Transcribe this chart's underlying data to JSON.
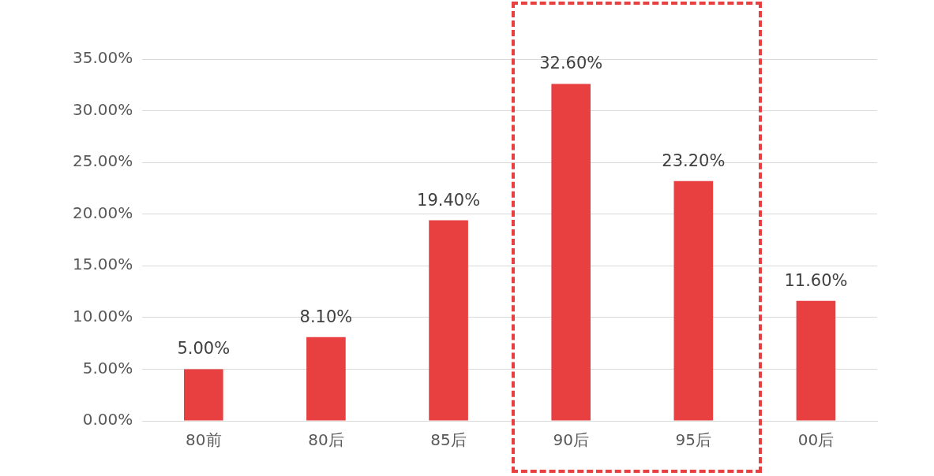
{
  "chart_data": {
    "type": "bar",
    "categories": [
      "80前",
      "80后",
      "85后",
      "90后",
      "95后",
      "00后"
    ],
    "values": [
      5.0,
      8.1,
      19.4,
      32.6,
      23.2,
      11.6
    ],
    "value_labels": [
      "5.00%",
      "8.10%",
      "19.40%",
      "32.60%",
      "23.20%",
      "11.60%"
    ],
    "color": "#e84041",
    "ylim": [
      0,
      35
    ],
    "yticks": [
      {
        "value": 0,
        "label": "0.00%"
      },
      {
        "value": 5,
        "label": "5.00%"
      },
      {
        "value": 10,
        "label": "10.00%"
      },
      {
        "value": 15,
        "label": "15.00%"
      },
      {
        "value": 20,
        "label": "20.00%"
      },
      {
        "value": 25,
        "label": "25.00%"
      },
      {
        "value": 30,
        "label": "30.00%"
      },
      {
        "value": 35,
        "label": "35.00%"
      }
    ],
    "grid": "y",
    "legend": false
  }
}
